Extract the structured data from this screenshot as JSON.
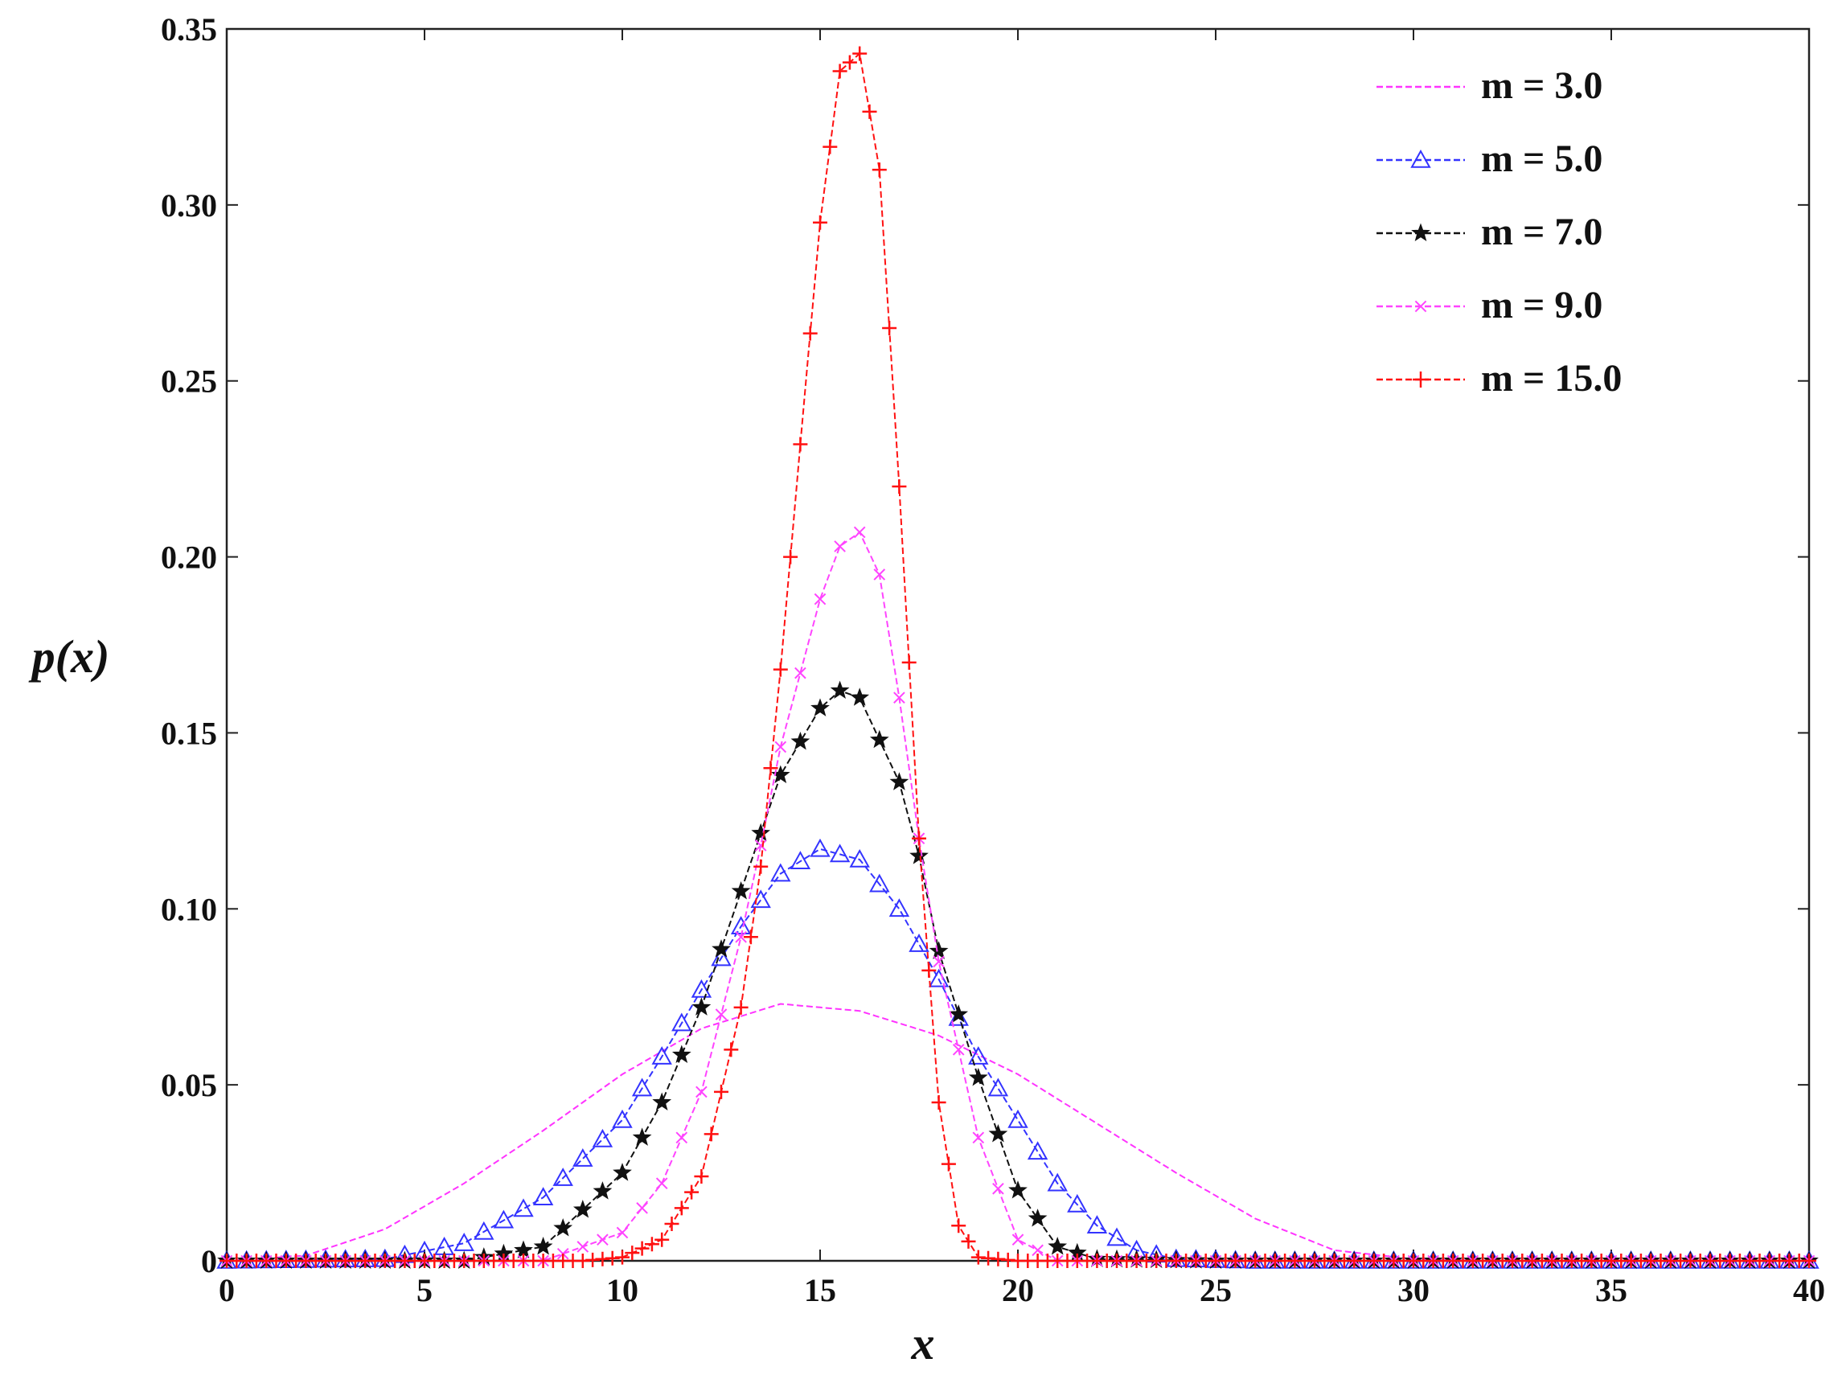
{
  "chart_data": {
    "type": "line",
    "title": "",
    "xlabel": "x",
    "ylabel": "p(x)",
    "xlim": [
      0,
      40
    ],
    "ylim": [
      0,
      0.35
    ],
    "xticks": [
      0,
      5,
      10,
      15,
      20,
      25,
      30,
      35,
      40
    ],
    "xtick_labels": [
      "0",
      "5",
      "10",
      "15",
      "20",
      "25",
      "30",
      "35",
      "40"
    ],
    "yticks": [
      0,
      0.05,
      0.1,
      0.15,
      0.2,
      0.25,
      0.3,
      0.35
    ],
    "ytick_labels": [
      "0",
      "0.05",
      "0.10",
      "0.15",
      "0.20",
      "0.25",
      "0.30",
      "0.35"
    ],
    "grid": false,
    "legend_position": "top-right",
    "series": [
      {
        "name": "m = 3.0",
        "color": "#ff33ff",
        "marker": "none",
        "x": [
          0,
          2,
          4,
          6,
          8,
          10,
          12,
          14,
          16,
          18,
          20,
          22,
          24,
          26,
          28,
          30,
          32,
          34,
          36,
          38,
          40
        ],
        "values": [
          0,
          0.0015,
          0.009,
          0.022,
          0.037,
          0.053,
          0.066,
          0.073,
          0.071,
          0.064,
          0.053,
          0.039,
          0.025,
          0.012,
          0.003,
          0.0005,
          0,
          0,
          0,
          0,
          0
        ]
      },
      {
        "name": "m = 5.0",
        "color": "#3333ff",
        "marker": "triangle",
        "x": [
          0,
          4,
          6,
          8,
          10,
          11,
          12,
          13,
          14,
          15,
          16,
          17,
          18,
          19,
          20,
          21,
          22,
          23,
          24,
          26,
          30,
          35,
          40
        ],
        "values": [
          0,
          0.0005,
          0.005,
          0.018,
          0.04,
          0.058,
          0.077,
          0.095,
          0.11,
          0.117,
          0.114,
          0.1,
          0.08,
          0.058,
          0.04,
          0.022,
          0.01,
          0.003,
          0.0005,
          0,
          0,
          0,
          0
        ]
      },
      {
        "name": "m = 7.0",
        "color": "#111111",
        "marker": "star",
        "x": [
          0,
          6,
          8,
          10,
          11,
          12,
          13,
          14,
          15,
          15.5,
          16,
          17,
          17.5,
          18,
          19,
          20,
          21,
          22,
          25,
          30,
          35,
          40
        ],
        "values": [
          0,
          0,
          0.004,
          0.025,
          0.045,
          0.072,
          0.105,
          0.138,
          0.157,
          0.162,
          0.16,
          0.136,
          0.115,
          0.088,
          0.052,
          0.02,
          0.004,
          0.0005,
          0,
          0,
          0,
          0
        ]
      },
      {
        "name": "m = 9.0",
        "color": "#ff44ff",
        "marker": "x",
        "x": [
          0,
          8,
          10,
          11,
          12,
          13,
          13.5,
          14,
          15,
          15.5,
          16,
          16.5,
          17,
          17.5,
          18,
          19,
          20,
          21,
          25,
          30,
          35,
          40
        ],
        "values": [
          0,
          0,
          0.008,
          0.022,
          0.048,
          0.092,
          0.118,
          0.146,
          0.188,
          0.203,
          0.207,
          0.195,
          0.16,
          0.12,
          0.085,
          0.035,
          0.006,
          0,
          0,
          0,
          0,
          0
        ]
      },
      {
        "name": "m = 15.0",
        "color": "#ff1111",
        "marker": "plus",
        "x": [
          0,
          9,
          10,
          11,
          12,
          13,
          13.5,
          14,
          14.5,
          15,
          15.5,
          16,
          16.5,
          17,
          17.5,
          18,
          18.5,
          19,
          20,
          25,
          30,
          35,
          40
        ],
        "values": [
          0,
          0,
          0.001,
          0.006,
          0.024,
          0.072,
          0.112,
          0.168,
          0.232,
          0.295,
          0.338,
          0.343,
          0.31,
          0.22,
          0.12,
          0.045,
          0.01,
          0.001,
          0,
          0,
          0,
          0,
          0
        ]
      }
    ]
  }
}
